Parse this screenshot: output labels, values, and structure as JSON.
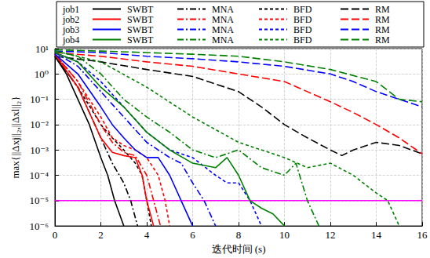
{
  "chart_data": {
    "type": "line",
    "x_label": "迭代时间 (s)",
    "y_label": "max{||Δxj||₂,||Δxl||₂}",
    "log": "y",
    "grid": true,
    "legend": "top",
    "xlim": [
      0,
      16
    ],
    "xticks": [
      0,
      2,
      4,
      6,
      8,
      10,
      12,
      14,
      16
    ],
    "ylim": [
      1e-06,
      10
    ],
    "yticks": [
      {
        "value": 1e-06,
        "label": "10⁻⁶"
      },
      {
        "value": 1e-05,
        "label": "10⁻⁵"
      },
      {
        "value": 0.0001,
        "label": "10⁻⁴"
      },
      {
        "value": 0.001,
        "label": "10⁻³"
      },
      {
        "value": 0.01,
        "label": "10⁻²"
      },
      {
        "value": 0.1,
        "label": "10⁻¹"
      },
      {
        "value": 1,
        "label": "10⁰"
      },
      {
        "value": 10,
        "label": "10¹"
      }
    ],
    "hlines": [
      {
        "y": 1e-05,
        "color": "#ff00ff"
      }
    ],
    "series": [
      {
        "job": "job1",
        "name": "SWBT",
        "color": "#000000",
        "line_style": "solid",
        "x": [
          0,
          0.5,
          1,
          1.5,
          2,
          2.3,
          2.6,
          3
        ],
        "values": [
          5,
          1,
          0.1,
          0.01,
          0.0005,
          0.0001,
          1e-05,
          1e-06
        ]
      },
      {
        "job": "job1",
        "name": "MNA",
        "color": "#000000",
        "line_style": "dashdot",
        "x": [
          0,
          1,
          1.5,
          2,
          2.5,
          3,
          3.3,
          3.6
        ],
        "values": [
          5,
          0.3,
          0.03,
          0.003,
          0.0003,
          5e-05,
          1e-05,
          1e-06
        ]
      },
      {
        "job": "job1",
        "name": "BFD",
        "color": "#000000",
        "line_style": "dashed",
        "x": [
          0,
          1,
          2,
          2.5,
          3,
          3.5,
          3.8,
          4,
          4.2
        ],
        "values": [
          5,
          0.3,
          0.01,
          0.003,
          0.001,
          0.0003,
          0.0001,
          1e-05,
          1e-06
        ]
      },
      {
        "job": "job1",
        "name": "RM",
        "color": "#000000",
        "line_style": "longdash",
        "x": [
          0,
          2,
          4,
          6,
          8,
          9,
          10,
          11,
          12,
          12.5,
          13,
          14,
          15,
          16
        ],
        "values": [
          5,
          3,
          1.5,
          0.8,
          0.2,
          0.05,
          0.01,
          0.003,
          0.001,
          0.0006,
          0.001,
          0.002,
          0.0015,
          0.0007
        ]
      },
      {
        "job": "job2",
        "name": "SWBT",
        "color": "#ff0000",
        "line_style": "solid",
        "x": [
          0,
          1,
          1.5,
          2,
          2.5,
          3,
          3.5,
          3.8,
          4,
          4.3
        ],
        "values": [
          6,
          0.3,
          0.03,
          0.003,
          0.0008,
          0.0006,
          0.0005,
          0.0001,
          1e-05,
          1e-06
        ]
      },
      {
        "job": "job2",
        "name": "MNA",
        "color": "#ff0000",
        "line_style": "dashdot",
        "x": [
          0,
          1,
          2,
          2.5,
          3,
          3.5,
          4,
          4.3,
          4.6
        ],
        "values": [
          6,
          0.5,
          0.01,
          0.002,
          0.0008,
          0.0006,
          0.0001,
          1e-05,
          1e-06
        ]
      },
      {
        "job": "job2",
        "name": "BFD",
        "color": "#ff0000",
        "line_style": "dashed",
        "x": [
          0,
          1,
          2,
          2.5,
          3,
          3.5,
          4,
          4.5,
          4.8,
          5
        ],
        "values": [
          6,
          0.5,
          0.02,
          0.003,
          0.0015,
          0.001,
          0.0005,
          0.0001,
          1e-05,
          1e-06
        ]
      },
      {
        "job": "job2",
        "name": "RM",
        "color": "#ff0000",
        "line_style": "longdash",
        "x": [
          0,
          2,
          4,
          6,
          8,
          10,
          11,
          12,
          13,
          14,
          15,
          16
        ],
        "values": [
          7,
          5,
          3,
          2,
          1,
          0.5,
          0.2,
          0.08,
          0.03,
          0.01,
          0.003,
          0.0007
        ]
      },
      {
        "job": "job3",
        "name": "SWBT",
        "color": "#0000ff",
        "line_style": "solid",
        "x": [
          0,
          1,
          2,
          2.5,
          3,
          3.5,
          4,
          4.5,
          5,
          5.5,
          6
        ],
        "values": [
          6,
          1,
          0.05,
          0.01,
          0.003,
          0.001,
          0.0005,
          0.0005,
          0.0001,
          1e-05,
          1e-06
        ]
      },
      {
        "job": "job3",
        "name": "MNA",
        "color": "#0000ff",
        "line_style": "dashdot",
        "x": [
          0,
          1,
          2,
          3,
          4,
          5,
          5.5,
          6,
          6.5,
          7
        ],
        "values": [
          7,
          2,
          0.2,
          0.02,
          0.002,
          0.0005,
          0.0003,
          5e-05,
          1e-05,
          1e-06
        ]
      },
      {
        "job": "job3",
        "name": "BFD",
        "color": "#0000ff",
        "line_style": "dashed",
        "x": [
          0,
          1,
          2,
          3,
          4,
          5,
          6,
          7,
          7.5,
          8,
          8.5,
          9
        ],
        "values": [
          7,
          3,
          0.5,
          0.05,
          0.005,
          0.001,
          0.0005,
          0.0001,
          5e-05,
          5e-05,
          1e-05,
          1e-06
        ]
      },
      {
        "job": "job3",
        "name": "RM",
        "color": "#0000ff",
        "line_style": "longdash",
        "x": [
          0,
          2,
          4,
          6,
          8,
          10,
          12,
          13,
          14,
          15,
          16
        ],
        "values": [
          8,
          7,
          5,
          4,
          3,
          2,
          1,
          0.5,
          0.2,
          0.1,
          0.05
        ]
      },
      {
        "job": "job4",
        "name": "SWBT",
        "color": "#008000",
        "line_style": "solid",
        "x": [
          0,
          1,
          2,
          3,
          4,
          5,
          6,
          7,
          7.5,
          8,
          8.5,
          9,
          9.5,
          10
        ],
        "values": [
          7,
          3,
          0.3,
          0.05,
          0.005,
          0.001,
          0.0003,
          0.0002,
          0.0005,
          0.0001,
          1e-05,
          5e-06,
          3e-06,
          1e-06
        ]
      },
      {
        "job": "job4",
        "name": "MNA",
        "color": "#008000",
        "line_style": "dashdot",
        "x": [
          0,
          1,
          2,
          3,
          4,
          5,
          6,
          7,
          8,
          9,
          10,
          10.5,
          11,
          11.5
        ],
        "values": [
          8,
          5,
          1,
          0.1,
          0.02,
          0.005,
          0.001,
          0.0005,
          0.001,
          0.0002,
          0.0001,
          0.0003,
          1e-05,
          1e-06
        ]
      },
      {
        "job": "job4",
        "name": "BFD",
        "color": "#008000",
        "line_style": "dashed",
        "x": [
          0,
          2,
          4,
          6,
          8,
          10,
          11,
          12,
          13,
          14,
          14.5,
          15
        ],
        "values": [
          8,
          3,
          0.3,
          0.02,
          0.002,
          0.0005,
          0.0002,
          0.0003,
          0.0001,
          2e-05,
          1e-05,
          1e-06
        ]
      },
      {
        "job": "job4",
        "name": "RM",
        "color": "#008000",
        "line_style": "longdash",
        "x": [
          0,
          2,
          4,
          6,
          8,
          10,
          12,
          14,
          15,
          16
        ],
        "values": [
          9,
          8,
          7,
          6,
          5,
          3,
          1.5,
          0.5,
          0.1,
          0.08
        ]
      }
    ]
  }
}
